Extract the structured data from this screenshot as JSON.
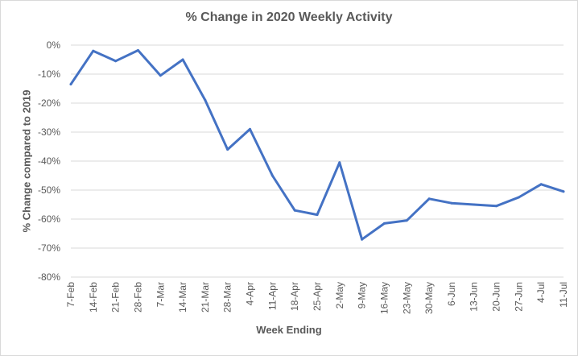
{
  "chart_data": {
    "type": "line",
    "title": "% Change in 2020 Weekly Activity",
    "xlabel": "Week Ending",
    "ylabel": "% Change compared to 2019",
    "ylim": [
      -80,
      0
    ],
    "ytick_step": 10,
    "ytick_suffix": "%",
    "grid": "horizontal",
    "legend": "none",
    "categories": [
      "7-Feb",
      "14-Feb",
      "21-Feb",
      "28-Feb",
      "7-Mar",
      "14-Mar",
      "21-Mar",
      "28-Mar",
      "4-Apr",
      "11-Apr",
      "18-Apr",
      "25-Apr",
      "2-May",
      "9-May",
      "16-May",
      "23-May",
      "30-May",
      "6-Jun",
      "13-Jun",
      "20-Jun",
      "27-Jun",
      "4-Jul",
      "11-Jul"
    ],
    "series": [
      {
        "values": [
          -13.5,
          -2,
          -5.5,
          -1.8,
          -10.5,
          -5,
          -19,
          -36,
          -29,
          -45,
          -57,
          -58.5,
          -40.5,
          -67,
          -61.5,
          -60.5,
          -53,
          -54.5,
          -55,
          -55.5,
          -52.5,
          -48,
          -50.5
        ]
      }
    ],
    "colors": {
      "line": "#4472c4",
      "grid": "#d9d9d9",
      "text": "#595959"
    }
  }
}
